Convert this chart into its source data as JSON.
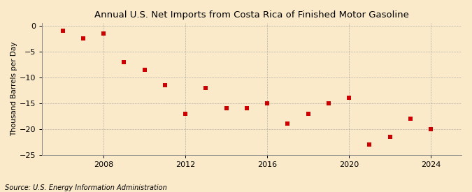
{
  "years": [
    2006,
    2007,
    2008,
    2009,
    2010,
    2011,
    2012,
    2013,
    2014,
    2015,
    2016,
    2017,
    2018,
    2019,
    2020,
    2021,
    2022,
    2023,
    2024
  ],
  "values": [
    -1.0,
    -2.5,
    -1.5,
    -7.0,
    -8.5,
    -11.5,
    -17.0,
    -12.0,
    -16.0,
    -16.0,
    -15.0,
    -19.0,
    -17.0,
    -15.0,
    -14.0,
    -23.0,
    -21.5,
    -18.0,
    -20.0
  ],
  "title": "Annual U.S. Net Imports from Costa Rica of Finished Motor Gasoline",
  "ylabel": "Thousand Barrels per Day",
  "source": "Source: U.S. Energy Information Administration",
  "marker_color": "#cc0000",
  "background_color": "#faeaca",
  "grid_color": "#999999",
  "ylim": [
    -25,
    0.5
  ],
  "yticks": [
    0,
    -5,
    -10,
    -15,
    -20,
    -25
  ],
  "xticks": [
    2008,
    2012,
    2016,
    2020,
    2024
  ],
  "xlim": [
    2005.0,
    2025.5
  ],
  "marker_size": 5,
  "title_fontsize": 9.5,
  "label_fontsize": 7.5,
  "tick_fontsize": 8,
  "source_fontsize": 7
}
